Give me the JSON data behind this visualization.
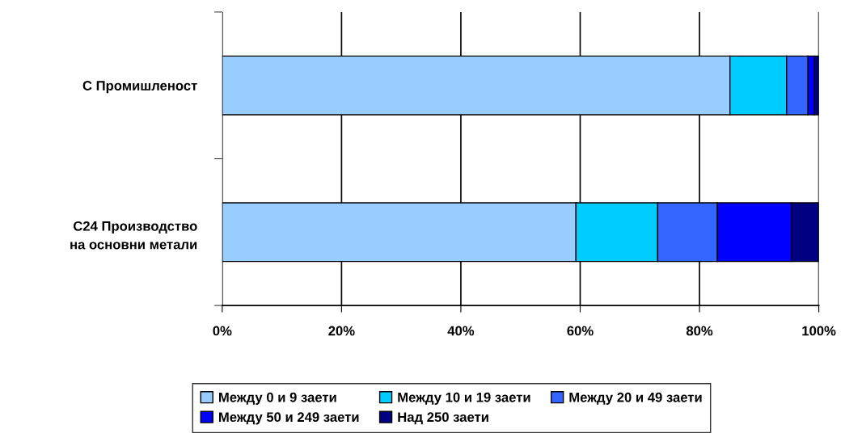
{
  "chart_data": {
    "type": "bar",
    "orientation": "horizontal",
    "stacked": true,
    "categories": [
      "C Промишленост",
      "C24 Производство\nна основни метали"
    ],
    "series": [
      {
        "name": "Между 0 и 9 заети",
        "color": "#99ccff",
        "values": [
          85.1,
          59.3
        ]
      },
      {
        "name": "Между 10 и 19 заети",
        "color": "#00ccff",
        "values": [
          9.5,
          13.7
        ]
      },
      {
        "name": "Между 20 и 49 заети",
        "color": "#3366ff",
        "values": [
          3.6,
          10.0
        ]
      },
      {
        "name": "Между 50 и 249 заети",
        "color": "#0000ff",
        "values": [
          1.1,
          12.4
        ]
      },
      {
        "name": "Над 250 заети",
        "color": "#000080",
        "values": [
          0.7,
          4.6
        ]
      }
    ],
    "xlim": [
      0,
      100
    ],
    "xticks": [
      {
        "value": 0,
        "label": "0%"
      },
      {
        "value": 20,
        "label": "20%"
      },
      {
        "value": 40,
        "label": "40%"
      },
      {
        "value": 60,
        "label": "60%"
      },
      {
        "value": 80,
        "label": "80%"
      },
      {
        "value": 100,
        "label": "100%"
      }
    ],
    "grid": "x",
    "legend": "bottom"
  }
}
